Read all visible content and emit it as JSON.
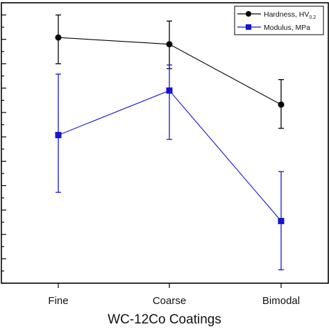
{
  "chart_data": {
    "type": "line",
    "categories": [
      "Fine",
      "Coarse",
      "Bimodal"
    ],
    "xlabel": "WC-12Co Coatings",
    "ylabel": "",
    "y_ticks_labeled": false,
    "grid": false,
    "legend_position": "top-right",
    "series": [
      {
        "name": "Hardness, HV",
        "name_subscript": "0.2",
        "color": "#000000",
        "marker": "circle",
        "values": [
          40.3,
          39.2,
          29.3
        ],
        "err_low": [
          36.0,
          35.2,
          25.4
        ],
        "err_high": [
          44.0,
          43.0,
          33.4
        ]
      },
      {
        "name": "Modulus, MPa",
        "color": "#1515d0",
        "marker": "square",
        "values": [
          24.3,
          31.6,
          10.2
        ],
        "err_low": [
          14.9,
          23.6,
          2.2
        ],
        "err_high": [
          34.3,
          35.8,
          18.3
        ]
      }
    ]
  }
}
